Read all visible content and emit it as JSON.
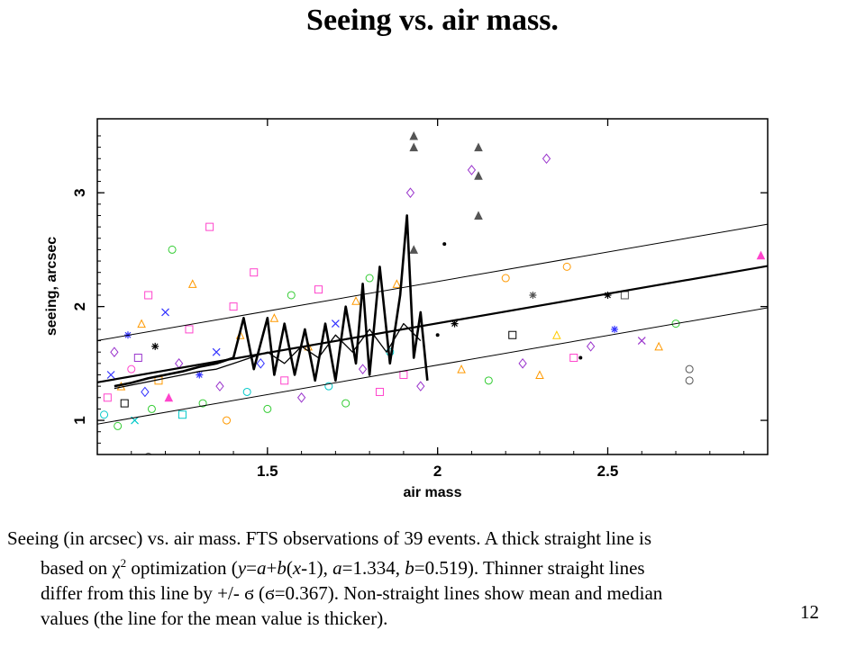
{
  "slide": {
    "title": "Seeing vs. air mass.",
    "page_number": "12"
  },
  "caption": {
    "line1": "Seeing (in arcsec) vs. air mass. FTS observations of 39 events. A thick straight line is",
    "line2_a": "based on ",
    "line2_chi": "χ",
    "line2_sup": "2",
    "line2_b": " optimization (",
    "line2_y": "y",
    "line2_c": "=",
    "line2_a_var": "a",
    "line2_d": "+",
    "line2_b_var": "b",
    "line2_e": "(",
    "line2_x": "x",
    "line2_f": "-1), ",
    "line2_a_var2": "a",
    "line2_g": "=1.334, ",
    "line2_b_var2": "b",
    "line2_h": "=0.519). Thinner straight lines",
    "line3": "differ from this line by +/- ϭ (ϭ=0.367). Non-straight lines show mean and median",
    "line4": "values (the line for the mean value is thicker)."
  },
  "chart_data": {
    "type": "scatter",
    "title": "",
    "xlabel": "air mass",
    "ylabel": "seeing, arcsec",
    "xlim": [
      1.0,
      2.97
    ],
    "ylim": [
      0.7,
      3.65
    ],
    "xticks": [
      1.5,
      2,
      2.5
    ],
    "xtick_labels": [
      "1.5",
      "2",
      "2.5"
    ],
    "yticks": [
      1,
      2,
      3
    ],
    "ytick_labels": [
      "1",
      "2",
      "3"
    ],
    "grid": false,
    "legend": "none",
    "fit": {
      "a": 1.334,
      "b": 0.519,
      "sigma": 0.367
    },
    "fit_lines": [
      {
        "name": "fit",
        "offset": 0,
        "weight": "thick"
      },
      {
        "name": "fit+sigma",
        "offset": 0.367,
        "weight": "thin"
      },
      {
        "name": "fit-sigma",
        "offset": -0.367,
        "weight": "thin"
      }
    ],
    "mean_line": {
      "x": [
        1.05,
        1.1,
        1.15,
        1.2,
        1.25,
        1.3,
        1.35,
        1.4,
        1.43,
        1.46,
        1.5,
        1.52,
        1.55,
        1.58,
        1.61,
        1.64,
        1.67,
        1.7,
        1.73,
        1.76,
        1.78,
        1.8,
        1.83,
        1.86,
        1.89,
        1.91,
        1.93,
        1.95,
        1.97
      ],
      "y": [
        1.3,
        1.33,
        1.37,
        1.4,
        1.43,
        1.47,
        1.5,
        1.55,
        1.9,
        1.45,
        1.9,
        1.4,
        1.85,
        1.4,
        1.8,
        1.35,
        1.85,
        1.35,
        2.0,
        1.5,
        2.2,
        1.4,
        2.35,
        1.5,
        2.1,
        2.8,
        1.55,
        1.95,
        1.35
      ]
    },
    "median_line": {
      "x": [
        1.05,
        1.1,
        1.15,
        1.2,
        1.25,
        1.3,
        1.35,
        1.4,
        1.45,
        1.5,
        1.55,
        1.6,
        1.65,
        1.7,
        1.75,
        1.8,
        1.85,
        1.9,
        1.95
      ],
      "y": [
        1.28,
        1.31,
        1.34,
        1.37,
        1.4,
        1.43,
        1.45,
        1.5,
        1.55,
        1.6,
        1.5,
        1.65,
        1.55,
        1.75,
        1.6,
        1.8,
        1.6,
        1.85,
        1.7
      ]
    },
    "scatter_points": [
      {
        "x": 1.02,
        "y": 1.05,
        "m": "circle",
        "c": "#00c8c8"
      },
      {
        "x": 1.03,
        "y": 1.2,
        "m": "square",
        "c": "#ff44cc"
      },
      {
        "x": 1.04,
        "y": 1.4,
        "m": "cross",
        "c": "#3333ff"
      },
      {
        "x": 1.05,
        "y": 1.6,
        "m": "diamond",
        "c": "#9933cc"
      },
      {
        "x": 1.06,
        "y": 0.95,
        "m": "circle",
        "c": "#33cc33"
      },
      {
        "x": 1.07,
        "y": 1.3,
        "m": "triangle",
        "c": "#ff9900"
      },
      {
        "x": 1.08,
        "y": 1.15,
        "m": "square",
        "c": "#000000"
      },
      {
        "x": 1.09,
        "y": 1.75,
        "m": "star",
        "c": "#3333ff"
      },
      {
        "x": 1.1,
        "y": 1.45,
        "m": "circle",
        "c": "#ff44cc"
      },
      {
        "x": 1.11,
        "y": 1.0,
        "m": "cross",
        "c": "#00c8c8"
      },
      {
        "x": 1.12,
        "y": 1.55,
        "m": "square",
        "c": "#9933cc"
      },
      {
        "x": 1.13,
        "y": 1.85,
        "m": "triangle",
        "c": "#ff9900"
      },
      {
        "x": 1.14,
        "y": 1.25,
        "m": "diamond",
        "c": "#3333ff"
      },
      {
        "x": 1.15,
        "y": 2.1,
        "m": "square",
        "c": "#ff44cc"
      },
      {
        "x": 1.16,
        "y": 1.1,
        "m": "circle",
        "c": "#33cc33"
      },
      {
        "x": 1.17,
        "y": 1.65,
        "m": "star",
        "c": "#000000"
      },
      {
        "x": 1.18,
        "y": 1.35,
        "m": "square",
        "c": "#ff9900"
      },
      {
        "x": 1.2,
        "y": 1.95,
        "m": "cross",
        "c": "#3333ff"
      },
      {
        "x": 1.21,
        "y": 1.2,
        "m": "triangle",
        "c": "#ff44cc"
      },
      {
        "x": 1.22,
        "y": 2.5,
        "m": "circle",
        "c": "#33cc33"
      },
      {
        "x": 1.24,
        "y": 1.5,
        "m": "diamond",
        "c": "#9933cc"
      },
      {
        "x": 1.25,
        "y": 1.05,
        "m": "square",
        "c": "#00c8c8"
      },
      {
        "x": 1.27,
        "y": 1.8,
        "m": "square",
        "c": "#ff44cc"
      },
      {
        "x": 1.28,
        "y": 2.2,
        "m": "triangle",
        "c": "#ff9900"
      },
      {
        "x": 1.3,
        "y": 1.4,
        "m": "star",
        "c": "#3333ff"
      },
      {
        "x": 1.31,
        "y": 1.15,
        "m": "circle",
        "c": "#33cc33"
      },
      {
        "x": 1.33,
        "y": 2.7,
        "m": "square",
        "c": "#ff44cc"
      },
      {
        "x": 1.35,
        "y": 1.6,
        "m": "cross",
        "c": "#3333ff"
      },
      {
        "x": 1.36,
        "y": 1.3,
        "m": "diamond",
        "c": "#9933cc"
      },
      {
        "x": 1.38,
        "y": 1.0,
        "m": "circle",
        "c": "#ff9900"
      },
      {
        "x": 1.4,
        "y": 2.0,
        "m": "square",
        "c": "#ff44cc"
      },
      {
        "x": 1.42,
        "y": 1.75,
        "m": "triangle",
        "c": "#ff9900"
      },
      {
        "x": 1.44,
        "y": 1.25,
        "m": "circle",
        "c": "#00c8c8"
      },
      {
        "x": 1.46,
        "y": 2.3,
        "m": "square",
        "c": "#ff44cc"
      },
      {
        "x": 1.48,
        "y": 1.5,
        "m": "diamond",
        "c": "#3333ff"
      },
      {
        "x": 1.5,
        "y": 1.1,
        "m": "circle",
        "c": "#33cc33"
      },
      {
        "x": 1.52,
        "y": 1.9,
        "m": "triangle",
        "c": "#ff9900"
      },
      {
        "x": 1.55,
        "y": 1.35,
        "m": "square",
        "c": "#ff44cc"
      },
      {
        "x": 1.57,
        "y": 2.1,
        "m": "circle",
        "c": "#33cc33"
      },
      {
        "x": 1.6,
        "y": 1.2,
        "m": "diamond",
        "c": "#9933cc"
      },
      {
        "x": 1.62,
        "y": 1.65,
        "m": "triangle",
        "c": "#ff9900"
      },
      {
        "x": 1.65,
        "y": 2.15,
        "m": "square",
        "c": "#ff44cc"
      },
      {
        "x": 1.68,
        "y": 1.3,
        "m": "circle",
        "c": "#00c8c8"
      },
      {
        "x": 1.7,
        "y": 1.85,
        "m": "cross",
        "c": "#3333ff"
      },
      {
        "x": 1.73,
        "y": 1.15,
        "m": "circle",
        "c": "#33cc33"
      },
      {
        "x": 1.76,
        "y": 2.05,
        "m": "triangle",
        "c": "#ff9900"
      },
      {
        "x": 1.78,
        "y": 1.45,
        "m": "diamond",
        "c": "#9933cc"
      },
      {
        "x": 1.8,
        "y": 2.25,
        "m": "circle",
        "c": "#33cc33"
      },
      {
        "x": 1.83,
        "y": 1.25,
        "m": "square",
        "c": "#ff44cc"
      },
      {
        "x": 1.86,
        "y": 1.6,
        "m": "circle",
        "c": "#00c8c8"
      },
      {
        "x": 1.88,
        "y": 2.2,
        "m": "triangle",
        "c": "#ff9900"
      },
      {
        "x": 1.9,
        "y": 1.4,
        "m": "square",
        "c": "#ff44cc"
      },
      {
        "x": 1.92,
        "y": 3.0,
        "m": "diamond",
        "c": "#9933cc"
      },
      {
        "x": 1.93,
        "y": 3.4,
        "m": "triangle",
        "c": "#555555"
      },
      {
        "x": 1.93,
        "y": 3.5,
        "m": "triangle",
        "c": "#555555"
      },
      {
        "x": 1.93,
        "y": 2.5,
        "m": "triangle",
        "c": "#555555"
      },
      {
        "x": 1.95,
        "y": 1.3,
        "m": "diamond",
        "c": "#9933cc"
      },
      {
        "x": 2.0,
        "y": 1.75,
        "m": "dot",
        "c": "#000000"
      },
      {
        "x": 2.05,
        "y": 1.85,
        "m": "star",
        "c": "#000000"
      },
      {
        "x": 2.07,
        "y": 1.45,
        "m": "triangle",
        "c": "#ff9900"
      },
      {
        "x": 2.1,
        "y": 3.2,
        "m": "diamond",
        "c": "#9933cc"
      },
      {
        "x": 2.12,
        "y": 3.4,
        "m": "triangle",
        "c": "#555555"
      },
      {
        "x": 2.12,
        "y": 3.15,
        "m": "triangle",
        "c": "#555555"
      },
      {
        "x": 2.12,
        "y": 2.8,
        "m": "triangle",
        "c": "#555555"
      },
      {
        "x": 2.15,
        "y": 1.35,
        "m": "circle",
        "c": "#33cc33"
      },
      {
        "x": 2.2,
        "y": 2.25,
        "m": "circle",
        "c": "#ff9900"
      },
      {
        "x": 2.22,
        "y": 1.75,
        "m": "square",
        "c": "#000000"
      },
      {
        "x": 2.25,
        "y": 1.5,
        "m": "diamond",
        "c": "#9933cc"
      },
      {
        "x": 2.28,
        "y": 2.1,
        "m": "star",
        "c": "#555555"
      },
      {
        "x": 2.3,
        "y": 1.4,
        "m": "triangle",
        "c": "#ff9900"
      },
      {
        "x": 2.32,
        "y": 3.3,
        "m": "diamond",
        "c": "#9933cc"
      },
      {
        "x": 2.35,
        "y": 1.75,
        "m": "triangle",
        "c": "#ffcc00"
      },
      {
        "x": 2.38,
        "y": 2.35,
        "m": "circle",
        "c": "#ff9900"
      },
      {
        "x": 2.4,
        "y": 1.55,
        "m": "square",
        "c": "#ff44cc"
      },
      {
        "x": 2.42,
        "y": 1.55,
        "m": "dot",
        "c": "#000000"
      },
      {
        "x": 2.45,
        "y": 1.65,
        "m": "diamond",
        "c": "#9933cc"
      },
      {
        "x": 2.5,
        "y": 2.1,
        "m": "star",
        "c": "#000000"
      },
      {
        "x": 2.52,
        "y": 1.8,
        "m": "star",
        "c": "#3333ff"
      },
      {
        "x": 2.55,
        "y": 2.1,
        "m": "square",
        "c": "#555555"
      },
      {
        "x": 2.6,
        "y": 1.7,
        "m": "cross",
        "c": "#9933cc"
      },
      {
        "x": 2.65,
        "y": 1.65,
        "m": "triangle",
        "c": "#ff9900"
      },
      {
        "x": 2.7,
        "y": 1.85,
        "m": "circle",
        "c": "#33cc33"
      },
      {
        "x": 2.74,
        "y": 1.45,
        "m": "circle",
        "c": "#555555"
      },
      {
        "x": 2.74,
        "y": 1.35,
        "m": "circle",
        "c": "#555555"
      },
      {
        "x": 2.95,
        "y": 2.45,
        "m": "triangle",
        "c": "#ff44cc"
      },
      {
        "x": 1.15,
        "y": 0.68,
        "m": "circle",
        "c": "#555555"
      },
      {
        "x": 2.02,
        "y": 2.55,
        "m": "dot",
        "c": "#000000"
      }
    ]
  }
}
